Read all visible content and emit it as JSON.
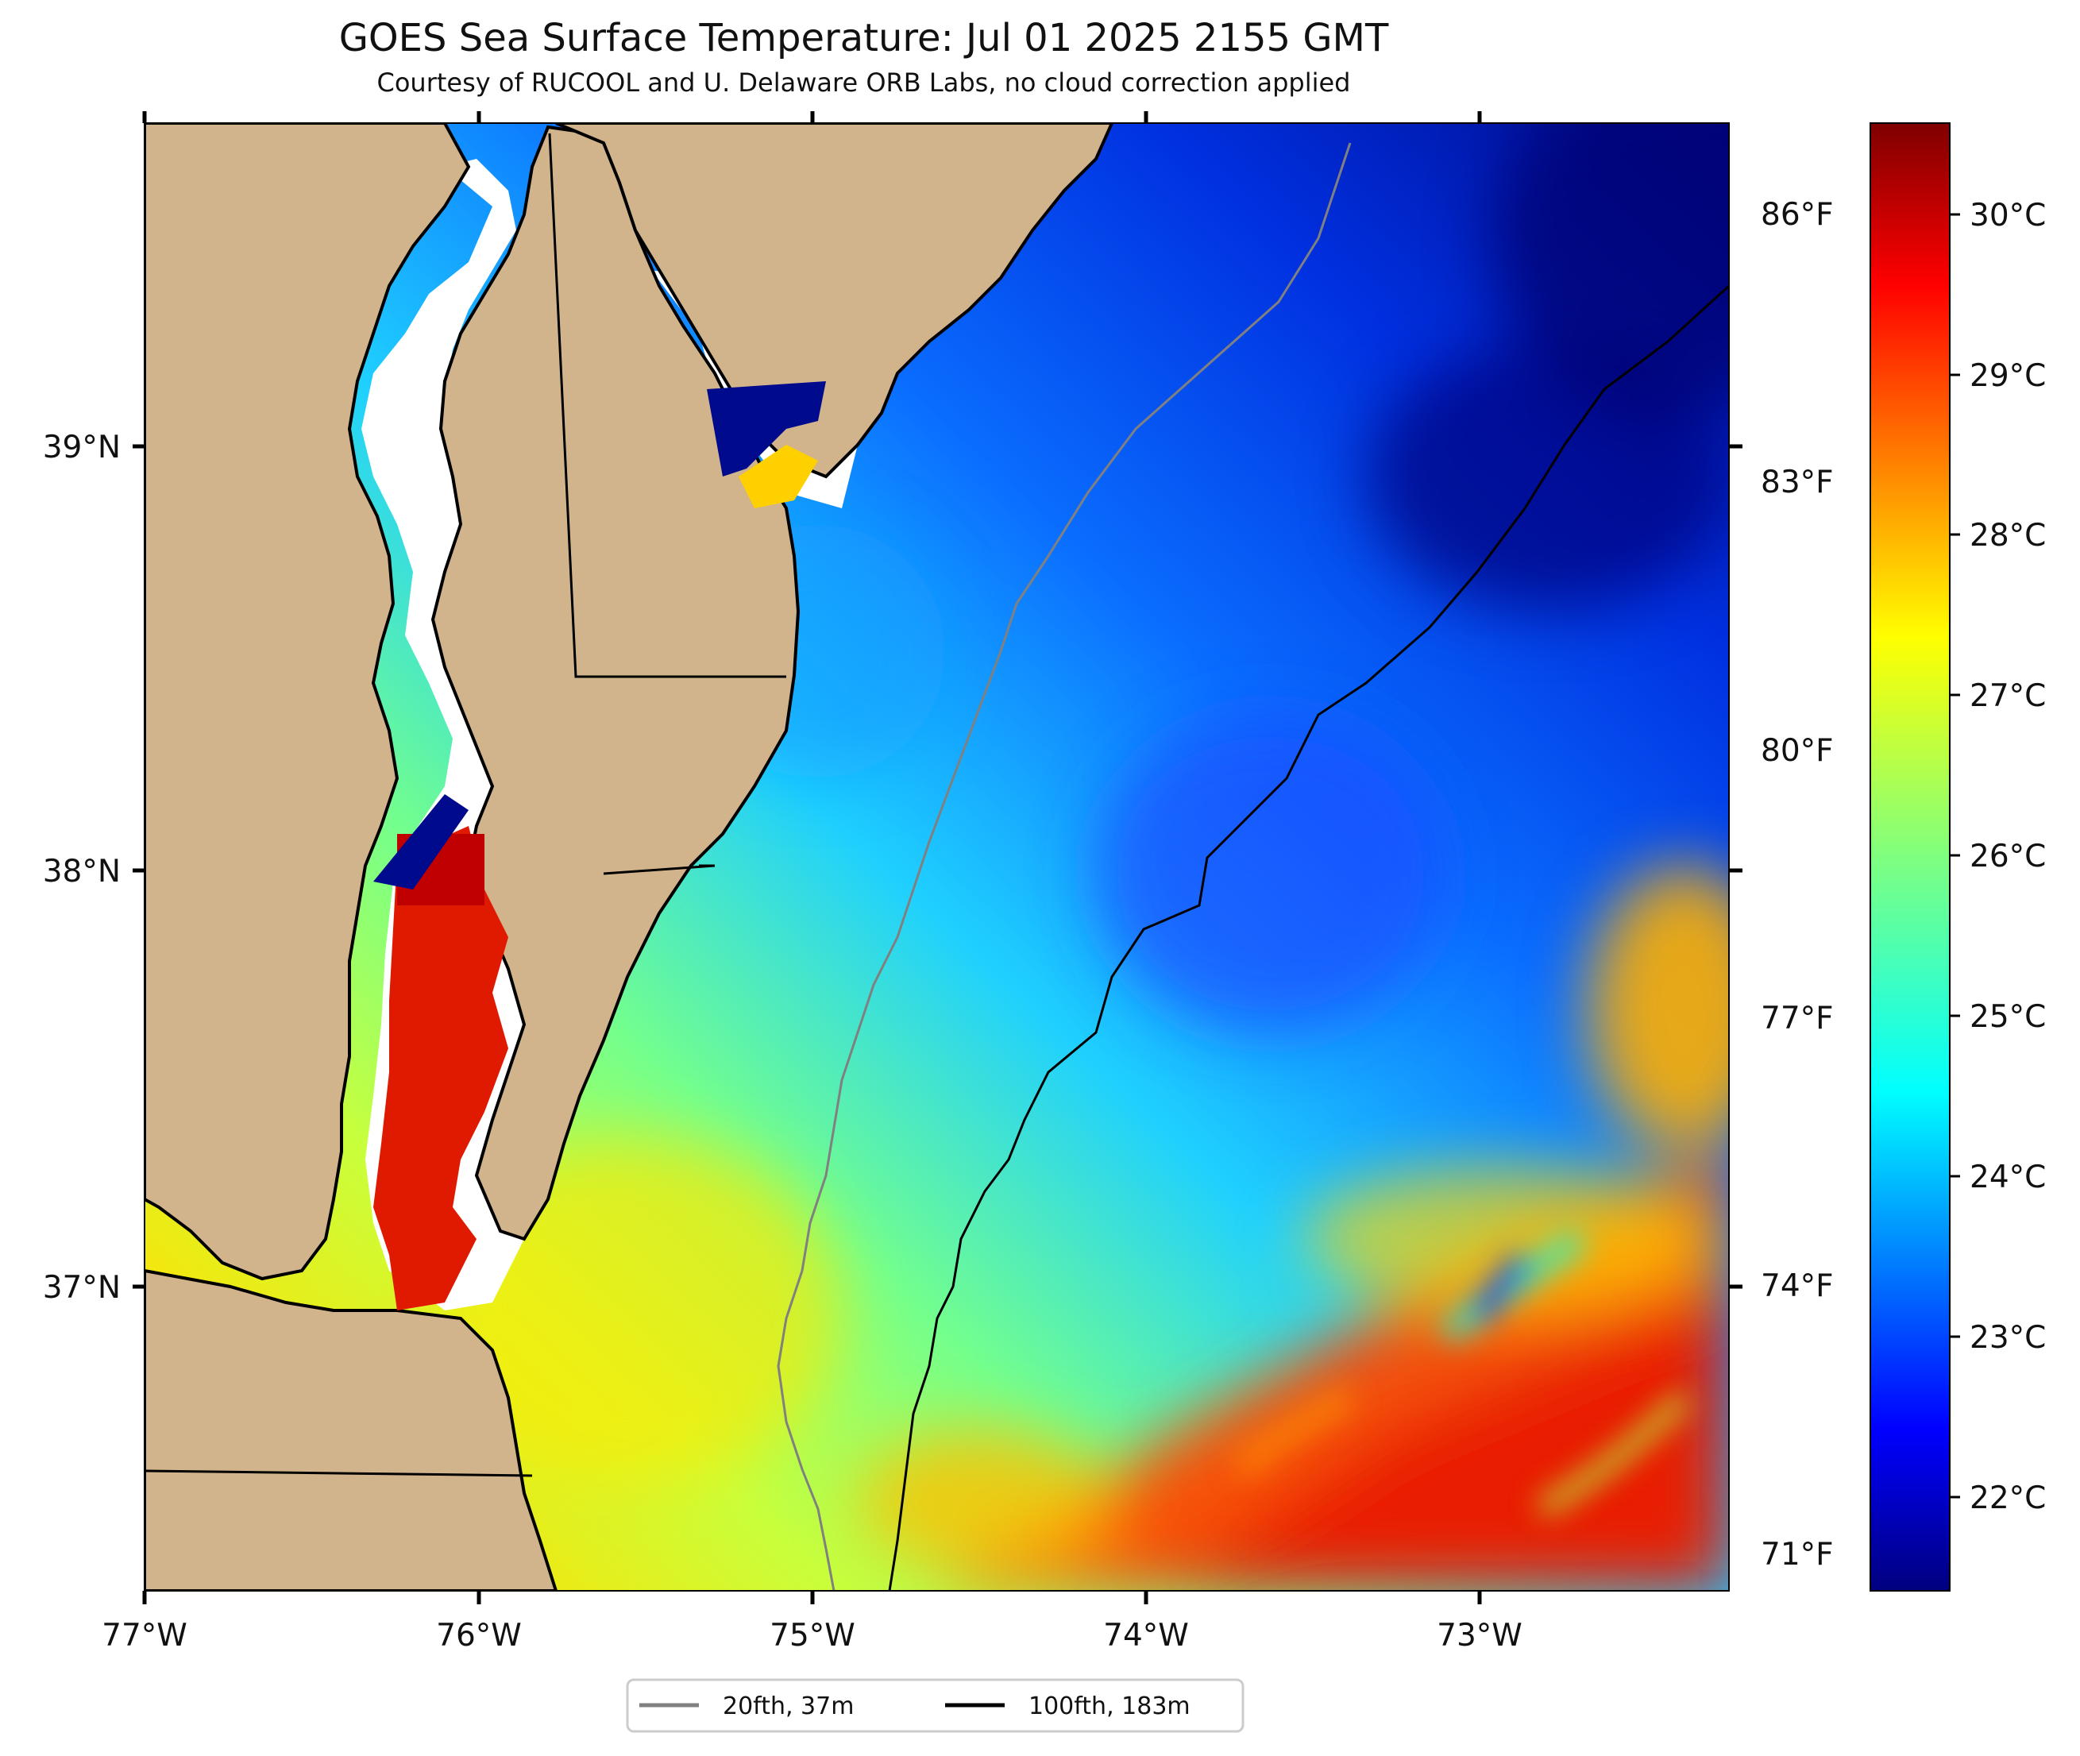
{
  "title": "GOES Sea Surface Temperature: Jul 01 2025 2155 GMT",
  "subtitle": "Courtesy of RUCOOL and U. Delaware ORB Labs, no cloud correction applied",
  "map": {
    "x_ticks": [
      {
        "value": -77,
        "label": "77°W"
      },
      {
        "value": -76,
        "label": "76°W"
      },
      {
        "value": -75,
        "label": "75°W"
      },
      {
        "value": -74,
        "label": "74°W"
      },
      {
        "value": -73,
        "label": "73°W"
      }
    ],
    "y_ticks": [
      {
        "value": 39,
        "label": "39°N"
      },
      {
        "value": 38,
        "label": "38°N"
      },
      {
        "value": 37,
        "label": "37°N"
      }
    ],
    "lon_range": [
      -77,
      -72.25
    ],
    "lat_range": [
      36.3,
      39.77
    ],
    "colors": {
      "land": "#d2b48c",
      "bay": "#ffffff",
      "coast": "#000000"
    }
  },
  "colorbar": {
    "celsius_ticks": [
      "30°C",
      "29°C",
      "28°C",
      "27°C",
      "26°C",
      "25°C",
      "24°C",
      "23°C",
      "22°C"
    ],
    "fahrenheit_ticks": [
      "86°F",
      "83°F",
      "80°F",
      "77°F",
      "74°F",
      "71°F"
    ],
    "range_c": [
      21.5,
      30.5
    ],
    "colormap": "jet"
  },
  "legend": {
    "items": [
      {
        "label": "20fth, 37m",
        "color": "#808080"
      },
      {
        "label": "100fth, 183m",
        "color": "#000000"
      }
    ],
    "placement": "bottom-center"
  }
}
